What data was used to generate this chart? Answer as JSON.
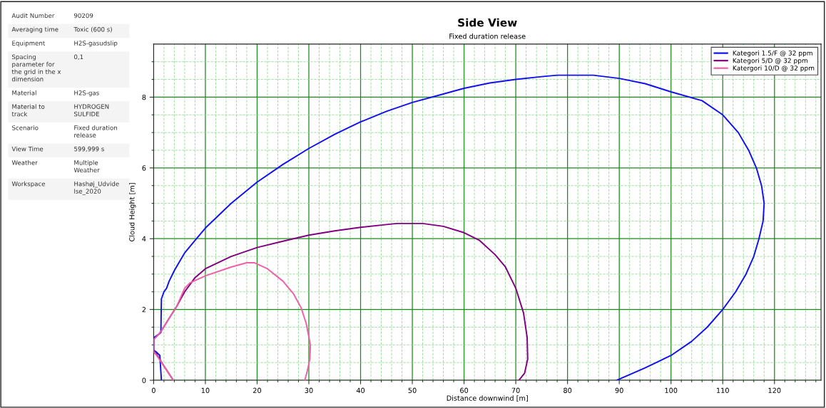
{
  "chart_data": [
    {
      "type": "other",
      "annotations": [
        "Audit Number",
        "90209",
        "Averaging time",
        "Toxic (600 s)",
        "Equipment",
        "H2S-gasudslip",
        "Spacing parameter for the grid in the x dimension",
        "0,1",
        "Material",
        "H2S-gas",
        "Material to track",
        "HYDROGEN SULFIDE",
        "Scenario",
        "Fixed duration release",
        "View Time",
        "599,999 s",
        "Weather",
        "Multiple Weather",
        "Workspace",
        "Hashøj_Udvidelse_2020"
      ]
    },
    {
      "type": "line",
      "title": "Side View",
      "subtitle": "Fixed duration release",
      "xlabel": "Distance downwind [m]",
      "ylabel": "Cloud Height [m]",
      "xlim": [
        0,
        129
      ],
      "ylim": [
        0,
        9.5
      ],
      "xticks": [
        0,
        {
          "value": 2,
          "label": null
        },
        {
          "value": 4,
          "label": null
        },
        {
          "value": 6,
          "label": null
        },
        {
          "value": 8,
          "label": null
        },
        10,
        {
          "value": 12,
          "label": null
        },
        {
          "value": 14,
          "label": null
        },
        {
          "value": 16,
          "label": null
        },
        {
          "value": 18,
          "label": null
        },
        20,
        {
          "value": 22,
          "label": null
        },
        {
          "value": 24,
          "label": null
        },
        {
          "value": 26,
          "label": null
        },
        {
          "value": 28,
          "label": null
        },
        30,
        {
          "value": 32,
          "label": null
        },
        {
          "value": 34,
          "label": null
        },
        {
          "value": 36,
          "label": null
        },
        {
          "value": 38,
          "label": null
        },
        40,
        {
          "value": 42,
          "label": null
        },
        {
          "value": 44,
          "label": null
        },
        {
          "value": 46,
          "label": null
        },
        {
          "value": 48,
          "label": null
        },
        50,
        {
          "value": 52,
          "label": null
        },
        {
          "value": 54,
          "label": null
        },
        {
          "value": 56,
          "label": null
        },
        {
          "value": 58,
          "label": null
        },
        60,
        {
          "value": 62,
          "label": null
        },
        {
          "value": 64,
          "label": null
        },
        {
          "value": 66,
          "label": null
        },
        {
          "value": 68,
          "label": null
        },
        70,
        {
          "value": 72,
          "label": null
        },
        {
          "value": 74,
          "label": null
        },
        {
          "value": 76,
          "label": null
        },
        {
          "value": 78,
          "label": null
        },
        80,
        {
          "value": 82,
          "label": null
        },
        {
          "value": 84,
          "label": null
        },
        {
          "value": 86,
          "label": null
        },
        {
          "value": 88,
          "label": null
        },
        90,
        {
          "value": 92,
          "label": null
        },
        {
          "value": 94,
          "label": null
        },
        {
          "value": 96,
          "label": null
        },
        {
          "value": 98,
          "label": null
        },
        100,
        {
          "value": 102,
          "label": null
        },
        {
          "value": 104,
          "label": null
        },
        {
          "value": 106,
          "label": null
        },
        {
          "value": 108,
          "label": null
        },
        110,
        {
          "value": 112,
          "label": null
        },
        {
          "value": 114,
          "label": null
        },
        {
          "value": 116,
          "label": null
        },
        {
          "value": 118,
          "label": null
        },
        120,
        {
          "value": 122,
          "label": null
        },
        {
          "value": 124,
          "label": null
        },
        {
          "value": 126,
          "label": null
        },
        {
          "value": 128,
          "label": null
        }
      ],
      "yticks": [
        0,
        {
          "value": 0.5,
          "label": null
        },
        {
          "value": 1,
          "label": null
        },
        {
          "value": 1.5,
          "label": null
        },
        2,
        {
          "value": 2.5,
          "label": null
        },
        {
          "value": 3,
          "label": null
        },
        {
          "value": 3.5,
          "label": null
        },
        4,
        {
          "value": 4.5,
          "label": null
        },
        {
          "value": 5,
          "label": null
        },
        {
          "value": 5.5,
          "label": null
        },
        6,
        {
          "value": 6.5,
          "label": null
        },
        {
          "value": 7,
          "label": null
        },
        {
          "value": 7.5,
          "label": null
        },
        8,
        {
          "value": 8.5,
          "label": null
        },
        {
          "value": 9,
          "label": null
        }
      ],
      "grid": true,
      "legend": "top right",
      "marker": "none",
      "line_style": "solid",
      "series": [
        {
          "name": "Kategori 1.5/F @ 32 ppm",
          "color": "#1010f0",
          "x": [
            1.5,
            1.2,
            0.5,
            0,
            0,
            1,
            1.4,
            1.5,
            2,
            2.5,
            3,
            4,
            5,
            6,
            8,
            10,
            15,
            20,
            25,
            30,
            35,
            40,
            45,
            50,
            55,
            60,
            65,
            70,
            75,
            78,
            85,
            90,
            95,
            100,
            106,
            110,
            113,
            115,
            116.5,
            117.5,
            118,
            117.8,
            117,
            116,
            114.5,
            112.5,
            110,
            107,
            104,
            100,
            95,
            89.5
          ],
          "values": [
            0,
            0.7,
            0.8,
            0.85,
            1.2,
            1.3,
            1.35,
            2.3,
            2.5,
            2.6,
            2.8,
            3.1,
            3.35,
            3.6,
            3.95,
            4.3,
            5.0,
            5.6,
            6.1,
            6.55,
            6.95,
            7.3,
            7.6,
            7.85,
            8.05,
            8.25,
            8.4,
            8.5,
            8.58,
            8.62,
            8.62,
            8.53,
            8.38,
            8.15,
            7.9,
            7.5,
            7.0,
            6.5,
            6.0,
            5.5,
            5.0,
            4.5,
            4.0,
            3.5,
            3.0,
            2.5,
            2.0,
            1.5,
            1.1,
            0.7,
            0.35,
            0
          ]
        },
        {
          "name": "Kategori 5/D @ 32 ppm",
          "color": "#800080",
          "x": [
            3.8,
            2,
            0.5,
            0,
            0,
            1,
            1.5,
            3,
            4.5,
            6,
            7,
            8,
            10,
            15,
            20,
            25,
            30,
            35,
            40,
            45,
            47,
            52,
            56,
            60,
            63,
            66,
            68,
            70,
            71.5,
            72.2,
            72.3,
            71.7,
            70.6
          ],
          "values": [
            0,
            0.4,
            0.75,
            0.8,
            1.15,
            1.3,
            1.4,
            1.75,
            2.1,
            2.5,
            2.7,
            2.9,
            3.15,
            3.5,
            3.75,
            3.93,
            4.1,
            4.22,
            4.32,
            4.4,
            4.43,
            4.43,
            4.35,
            4.17,
            3.95,
            3.55,
            3.2,
            2.6,
            1.9,
            1.2,
            0.6,
            0.2,
            0
          ]
        },
        {
          "name": "Katergori 10/D @ 32 ppm",
          "color": "#f060a8",
          "x": [
            3.8,
            2,
            0.5,
            0,
            0,
            1,
            1.5,
            3,
            4.5,
            6,
            7,
            10,
            15,
            18,
            19.5,
            22,
            25,
            27,
            28.5,
            29.5,
            30.3,
            30.2,
            29.6,
            29.2
          ],
          "values": [
            0,
            0.4,
            0.72,
            0.8,
            1.15,
            1.3,
            1.4,
            1.75,
            2.1,
            2.6,
            2.75,
            2.95,
            3.2,
            3.32,
            3.32,
            3.15,
            2.8,
            2.45,
            2.05,
            1.6,
            1.0,
            0.6,
            0.2,
            0
          ]
        }
      ]
    }
  ]
}
